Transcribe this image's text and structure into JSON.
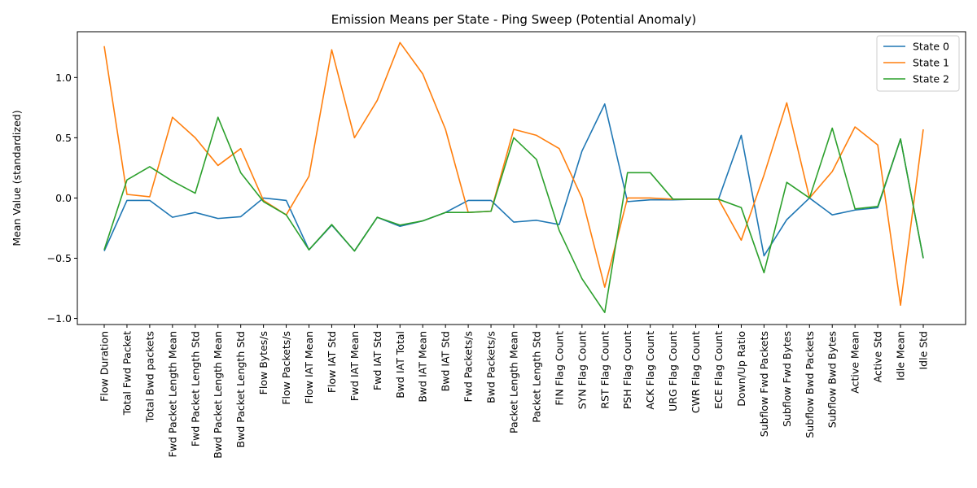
{
  "chart_data": {
    "type": "line",
    "title": "Emission Means per State - Ping Sweep (Potential Anomaly)",
    "xlabel": "",
    "ylabel": "Mean Value (standardized)",
    "ylim": [
      -1.05,
      1.38
    ],
    "yticks": [
      -1.0,
      -0.5,
      0.0,
      0.5,
      1.0
    ],
    "ytick_labels": [
      "−1.0",
      "−0.5",
      "0.0",
      "0.5",
      "1.0"
    ],
    "grid": false,
    "legend_position": "top-right",
    "categories": [
      "Flow Duration",
      "Total Fwd Packet",
      "Total Bwd packets",
      "Fwd Packet Length Mean",
      "Fwd Packet Length Std",
      "Bwd Packet Length Mean",
      "Bwd Packet Length Std",
      "Flow Bytes/s",
      "Flow Packets/s",
      "Flow IAT Mean",
      "Flow IAT Std",
      "Fwd IAT Mean",
      "Fwd IAT Std",
      "Bwd IAT Total",
      "Bwd IAT Mean",
      "Bwd IAT Std",
      "Fwd Packets/s",
      "Bwd Packets/s",
      "Packet Length Mean",
      "Packet Length Std",
      "FIN Flag Count",
      "SYN Flag Count",
      "RST Flag Count",
      "PSH Flag Count",
      "ACK Flag Count",
      "URG Flag Count",
      "CWR Flag Count",
      "ECE Flag Count",
      "Down/Up Ratio",
      "Subflow Fwd Packets",
      "Subflow Fwd Bytes",
      "Subflow Bwd Packets",
      "Subflow Bwd Bytes",
      "Active Mean",
      "Active Std",
      "Idle Mean",
      "Idle Std"
    ],
    "series": [
      {
        "name": "State 0",
        "color": "#1f77b4",
        "values": [
          -0.44,
          -0.02,
          -0.02,
          -0.16,
          -0.12,
          -0.17,
          -0.155,
          0.0,
          -0.02,
          -0.43,
          -0.225,
          -0.44,
          -0.16,
          -0.235,
          -0.19,
          -0.12,
          -0.02,
          -0.02,
          -0.2,
          -0.185,
          -0.22,
          0.39,
          0.78,
          -0.03,
          -0.015,
          -0.015,
          -0.01,
          -0.01,
          0.52,
          -0.48,
          -0.18,
          0.0,
          -0.14,
          -0.1,
          -0.08,
          0.49,
          -0.5
        ]
      },
      {
        "name": "State 1",
        "color": "#ff7f0e",
        "values": [
          1.26,
          0.03,
          0.01,
          0.67,
          0.5,
          0.27,
          0.41,
          -0.02,
          -0.14,
          0.18,
          1.23,
          0.5,
          0.81,
          1.29,
          1.03,
          0.57,
          -0.12,
          -0.11,
          0.57,
          0.52,
          0.41,
          0.0,
          -0.74,
          0.0,
          0.0,
          -0.01,
          -0.01,
          -0.01,
          -0.35,
          0.19,
          0.79,
          0.0,
          0.22,
          0.59,
          0.44,
          -0.89,
          0.57
        ]
      },
      {
        "name": "State 2",
        "color": "#2ca02c",
        "values": [
          -0.43,
          0.15,
          0.26,
          0.14,
          0.04,
          0.67,
          0.21,
          -0.03,
          -0.14,
          -0.43,
          -0.22,
          -0.44,
          -0.16,
          -0.225,
          -0.19,
          -0.12,
          -0.12,
          -0.11,
          0.5,
          0.32,
          -0.27,
          -0.67,
          -0.95,
          0.21,
          0.21,
          -0.01,
          -0.01,
          -0.01,
          -0.08,
          -0.62,
          0.13,
          0.0,
          0.58,
          -0.09,
          -0.07,
          0.49,
          -0.5
        ]
      }
    ]
  }
}
